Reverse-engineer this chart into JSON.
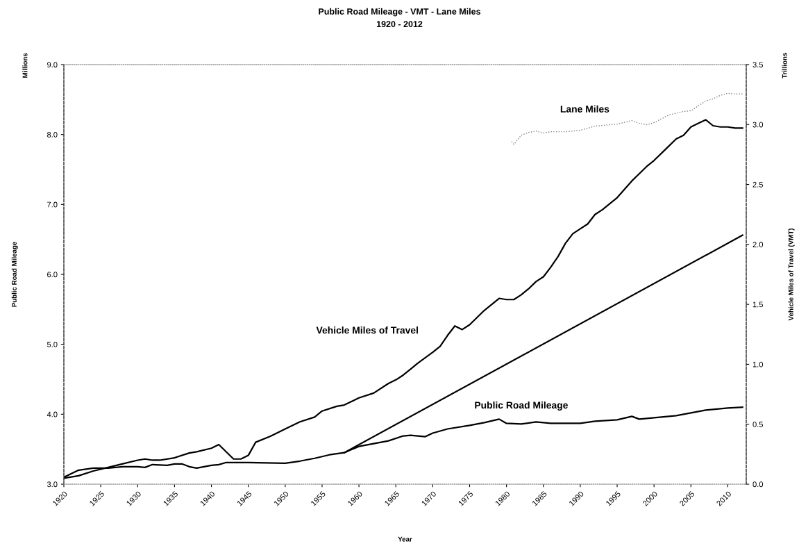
{
  "chart_data": {
    "type": "line",
    "title": "Public Road Mileage - VMT - Lane Miles",
    "subtitle": "1920 - 2012",
    "xlabel": "Year",
    "ylabel": "Public Road Mileage",
    "y2label": "Vehicle Miles of Travel (VMT)",
    "annotations": [
      "Millions",
      "Trillions"
    ],
    "xlim": [
      1920,
      2012.5
    ],
    "xticks": [
      1920,
      1925,
      1930,
      1935,
      1940,
      1945,
      1950,
      1955,
      1960,
      1965,
      1970,
      1975,
      1980,
      1985,
      1990,
      1995,
      2000,
      2005,
      2010
    ],
    "ylim": [
      3,
      9
    ],
    "yticks": [
      {
        "value": 3,
        "label": "3.0"
      },
      {
        "value": 4,
        "label": "4.0"
      },
      {
        "value": 5,
        "label": "5.0"
      },
      {
        "value": 6,
        "label": "6.0"
      },
      {
        "value": 7,
        "label": "7.0"
      },
      {
        "value": 8,
        "label": "8.0"
      },
      {
        "value": 9,
        "label": "9.0"
      }
    ],
    "y2lim": [
      0,
      3.5
    ],
    "y2ticks": [
      {
        "value": 0,
        "label": "0.0"
      },
      0.5,
      {
        "value": 1,
        "label": "1.0"
      },
      1.5,
      {
        "value": 2,
        "label": "2.0"
      },
      2.5,
      {
        "value": 3,
        "label": "3.0"
      },
      3.5
    ],
    "grid": false,
    "legend": false,
    "series": [
      {
        "name": "Public Road Mileage",
        "color": "#000000",
        "line_style": "solid",
        "x": [
          1920,
          1922,
          1924,
          1926,
          1928,
          1930,
          1931,
          1932,
          1934,
          1935,
          1936,
          1937,
          1938,
          1940,
          1941,
          1942,
          1945,
          1950,
          1952,
          1954,
          1956,
          1958,
          1960,
          1962,
          1964,
          1966,
          1967,
          1969,
          1970,
          1972,
          1975,
          1977,
          1979,
          1980,
          1982,
          1984,
          1986,
          1990,
          1992,
          1995,
          1997,
          1998,
          2000,
          2003,
          2005,
          2007,
          2010,
          2012
        ],
        "values": [
          3.1,
          3.2,
          3.23,
          3.23,
          3.25,
          3.25,
          3.24,
          3.28,
          3.27,
          3.29,
          3.29,
          3.25,
          3.23,
          3.27,
          3.28,
          3.31,
          3.31,
          3.3,
          3.33,
          3.37,
          3.42,
          3.45,
          3.54,
          3.58,
          3.62,
          3.69,
          3.7,
          3.68,
          3.73,
          3.79,
          3.84,
          3.88,
          3.93,
          3.87,
          3.86,
          3.89,
          3.87,
          3.87,
          3.9,
          3.92,
          3.97,
          3.93,
          3.95,
          3.98,
          4.02,
          4.06,
          4.09,
          4.1
        ]
      },
      {
        "name": "Vehicle Miles of Travel",
        "color": "#000000",
        "line_style": "solid",
        "axis": "y2",
        "x": [
          1920,
          1922,
          1924,
          1926,
          1928,
          1930,
          1931,
          1932,
          1933,
          1935,
          1937,
          1938,
          1940,
          1941,
          1943,
          1944,
          1945,
          1946,
          1948,
          1950,
          1952,
          1954,
          1955,
          1957,
          1958,
          1960,
          1962,
          1964,
          1965,
          1966,
          1967,
          1968,
          1970,
          1971,
          1972,
          1973,
          1974,
          1975,
          1977,
          1979,
          1980,
          1981,
          1982,
          1983,
          1984,
          1985,
          1986,
          1987,
          1988,
          1989,
          1990,
          1991,
          1992,
          1993,
          1995,
          1997,
          1999,
          2000,
          2002,
          2003,
          2004,
          2005,
          2006,
          2007,
          2008,
          2009,
          2010,
          2011,
          2012
        ],
        "values": [
          0.05,
          0.07,
          0.11,
          0.14,
          0.17,
          0.2,
          0.21,
          0.2,
          0.2,
          0.22,
          0.26,
          0.27,
          0.3,
          0.33,
          0.21,
          0.21,
          0.24,
          0.35,
          0.4,
          0.46,
          0.52,
          0.56,
          0.61,
          0.65,
          0.66,
          0.72,
          0.76,
          0.84,
          0.87,
          0.91,
          0.96,
          1.01,
          1.1,
          1.15,
          1.24,
          1.32,
          1.29,
          1.33,
          1.45,
          1.55,
          1.54,
          1.54,
          1.58,
          1.63,
          1.69,
          1.73,
          1.81,
          1.9,
          2.01,
          2.09,
          2.13,
          2.17,
          2.25,
          2.29,
          2.39,
          2.53,
          2.65,
          2.7,
          2.82,
          2.88,
          2.91,
          2.98,
          3.01,
          3.04,
          2.99,
          2.98,
          2.98,
          2.97,
          2.97
        ]
      },
      {
        "name": "Lane Miles",
        "color": "#808080",
        "line_style": "dotted",
        "x": [
          1980.7,
          1981,
          1982,
          1983,
          1984,
          1985,
          1986,
          1988,
          1990,
          1992,
          1995,
          1997,
          1998,
          1999,
          2000,
          2002,
          2004,
          2005,
          2006,
          2007,
          2008,
          2009,
          2010,
          2011,
          2012
        ],
        "values": [
          7.9,
          7.86,
          7.99,
          8.03,
          8.05,
          8.02,
          8.04,
          8.04,
          8.06,
          8.12,
          8.15,
          8.2,
          8.16,
          8.14,
          8.17,
          8.28,
          8.33,
          8.34,
          8.41,
          8.48,
          8.51,
          8.56,
          8.59,
          8.58,
          8.58
        ]
      },
      {
        "color": "#000000",
        "line_style": "solid",
        "x": [
          1958,
          2012
        ],
        "values": [
          3.45,
          6.56
        ]
      }
    ]
  }
}
